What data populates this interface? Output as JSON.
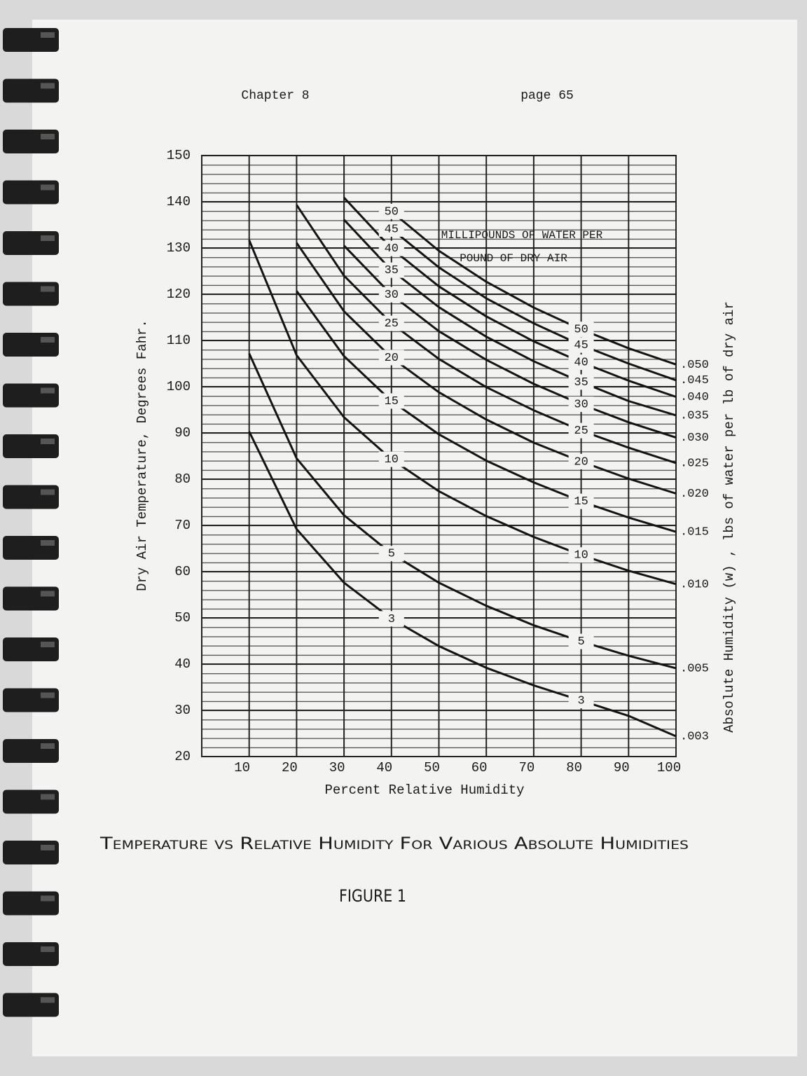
{
  "header": {
    "chapter": "Chapter 8",
    "page": "page 65"
  },
  "chart_data": {
    "type": "line",
    "x": [
      10,
      20,
      30,
      40,
      50,
      60,
      70,
      80,
      90,
      100
    ],
    "xlim": [
      0,
      100
    ],
    "xticks": [
      10,
      20,
      30,
      40,
      50,
      60,
      70,
      80,
      90,
      100
    ],
    "ylim": [
      20,
      150
    ],
    "yticks": [
      20,
      30,
      40,
      50,
      60,
      70,
      80,
      90,
      100,
      110,
      120,
      130,
      140,
      150
    ],
    "x_label": "Percent Relative Humidity",
    "y_label": "Dry Air Temperature, Degrees Fahr.",
    "y2_label": "Absolute Humidity (w) , lbs of water per lb of dry air",
    "annotation": [
      "MILLIPOUNDS OF WATER PER",
      "POUND OF DRY AIR"
    ],
    "color": "#141414",
    "grid": true,
    "series": [
      {
        "name": "3",
        "end_label": ".003",
        "values": [
          90.3,
          69.2,
          57.6,
          49.8,
          43.9,
          39.2,
          35.4,
          32.1,
          28.8,
          24.4
        ]
      },
      {
        "name": "5",
        "end_label": ".005",
        "values": [
          107.2,
          84.5,
          72.2,
          63.9,
          57.6,
          52.6,
          48.4,
          44.9,
          41.8,
          39.1
        ]
      },
      {
        "name": "10",
        "end_label": ".010",
        "values": [
          131.7,
          106.8,
          93.4,
          84.3,
          77.4,
          72.0,
          67.5,
          63.6,
          60.2,
          57.3
        ]
      },
      {
        "name": "15",
        "end_label": ".015",
        "values": [
          null,
          120.7,
          106.6,
          96.9,
          89.7,
          84.0,
          79.3,
          75.2,
          71.7,
          68.6
        ]
      },
      {
        "name": "20",
        "end_label": ".020",
        "values": [
          null,
          131.1,
          116.3,
          106.3,
          98.8,
          92.9,
          87.9,
          83.8,
          80.1,
          76.9
        ]
      },
      {
        "name": "25",
        "end_label": ".025",
        "values": [
          null,
          139.3,
          124.0,
          113.7,
          106.0,
          99.9,
          94.9,
          90.5,
          86.8,
          83.5
        ]
      },
      {
        "name": "30",
        "end_label": ".030",
        "values": [
          null,
          null,
          130.5,
          119.9,
          112.0,
          105.8,
          100.6,
          96.2,
          92.3,
          89.0
        ]
      },
      {
        "name": "35",
        "end_label": ".035",
        "values": [
          null,
          null,
          136.1,
          125.2,
          117.2,
          110.8,
          105.5,
          101.0,
          96.9,
          93.8
        ]
      },
      {
        "name": "40",
        "end_label": ".040",
        "values": [
          null,
          null,
          140.9,
          129.9,
          121.7,
          115.2,
          109.8,
          105.3,
          101.3,
          97.8
        ]
      },
      {
        "name": "45",
        "end_label": ".045",
        "values": [
          null,
          null,
          null,
          134.1,
          125.8,
          119.1,
          113.7,
          109.0,
          105.0,
          101.4
        ]
      },
      {
        "name": "50",
        "end_label": ".050",
        "values": [
          null,
          null,
          null,
          137.9,
          129.4,
          122.7,
          117.1,
          112.4,
          108.3,
          104.8
        ]
      }
    ]
  },
  "caption": {
    "title": "Temperature vs Relative Humidity For Various Absolute Humidities",
    "figure": "FIGURE 1"
  }
}
